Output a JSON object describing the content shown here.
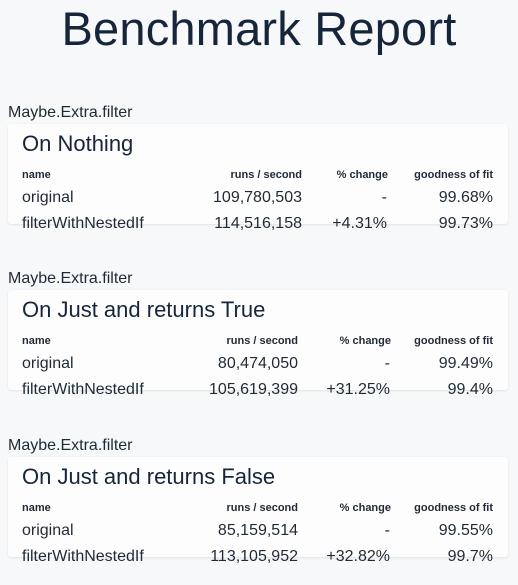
{
  "report": {
    "title": "Benchmark Report"
  },
  "columns": {
    "name": "name",
    "runs": "runs / second",
    "change": "% change",
    "fit": "goodness of fit"
  },
  "groups": [
    {
      "label": "Maybe.Extra.filter",
      "title": "On Nothing",
      "rows": [
        {
          "name": "original",
          "runs": "109,780,503",
          "change": "-",
          "fit": "99.68%"
        },
        {
          "name": "filterWithNestedIf",
          "runs": "114,516,158",
          "change": "+4.31%",
          "fit": "99.73%"
        }
      ]
    },
    {
      "label": "Maybe.Extra.filter",
      "title": "On Just and returns True",
      "rows": [
        {
          "name": "original",
          "runs": "80,474,050",
          "change": "-",
          "fit": "99.49%"
        },
        {
          "name": "filterWithNestedIf",
          "runs": "105,619,399",
          "change": "+31.25%",
          "fit": "99.4%"
        }
      ]
    },
    {
      "label": "Maybe.Extra.filter",
      "title": "On Just and returns False",
      "rows": [
        {
          "name": "original",
          "runs": "85,159,514",
          "change": "-",
          "fit": "99.55%"
        },
        {
          "name": "filterWithNestedIf",
          "runs": "113,105,952",
          "change": "+32.82%",
          "fit": "99.7%"
        }
      ]
    }
  ]
}
